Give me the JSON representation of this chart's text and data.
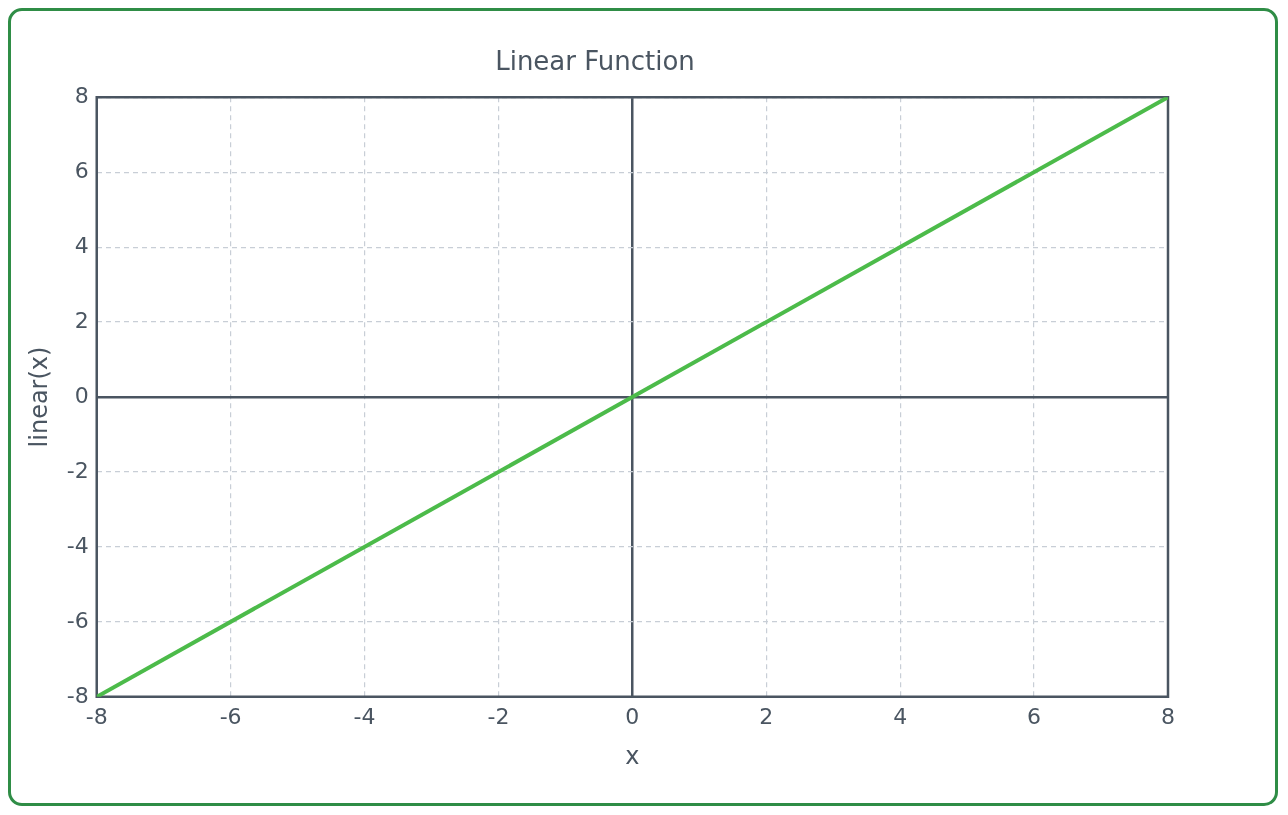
{
  "chart_data": {
    "type": "line",
    "title": "Linear Function",
    "xlabel": "x",
    "ylabel": "linear(x)",
    "x": [
      -8,
      8
    ],
    "series": [
      {
        "color": "#4cbb4a",
        "values": [
          -8,
          8
        ]
      }
    ],
    "xlim": [
      -8,
      8
    ],
    "ylim": [
      -8,
      8
    ],
    "xticks": [
      -8,
      -6,
      -4,
      -2,
      0,
      2,
      4,
      6,
      8
    ],
    "yticks": [
      -8,
      -6,
      -4,
      -2,
      0,
      2,
      4,
      6,
      8
    ],
    "grid": true,
    "legend": false,
    "marker": "none",
    "line_style": "solid"
  }
}
